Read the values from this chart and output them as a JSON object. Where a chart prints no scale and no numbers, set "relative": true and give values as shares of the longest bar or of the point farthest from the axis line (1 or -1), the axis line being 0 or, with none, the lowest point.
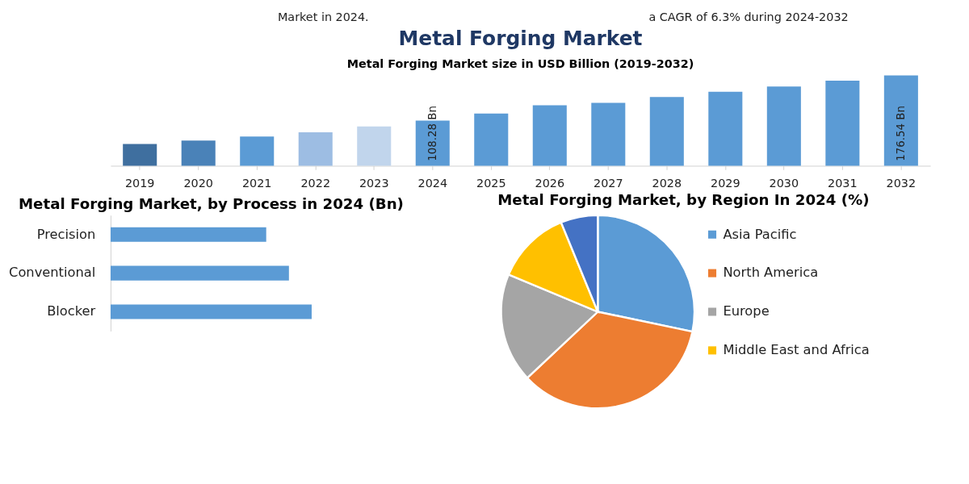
{
  "chart_data": [
    {
      "type": "bar",
      "title": "Metal Forging Market",
      "subtitle": "Metal Forging Market size in USD Billion (2019-2032)",
      "annotations": [
        "Market in 2024.",
        "a CAGR of 6.3% during 2024-2032"
      ],
      "categories": [
        "2019",
        "2020",
        "2021",
        "2022",
        "2023",
        "2024",
        "2025",
        "2026",
        "2027",
        "2028",
        "2029",
        "2030",
        "2031",
        "2032"
      ],
      "values": [
        72.8,
        78.1,
        84.3,
        90.5,
        99.4,
        108.28,
        118.9,
        131.3,
        134.9,
        143.7,
        151.7,
        159.7,
        168.5,
        176.54
      ],
      "colors": [
        "#3f6f9f",
        "#4a82b8",
        "#5b9bd5",
        "#9dbde3",
        "#c1d5ec",
        "#5b9bd5",
        "#5b9bd5",
        "#5b9bd5",
        "#5b9bd5",
        "#5b9bd5",
        "#5b9bd5",
        "#5b9bd5",
        "#5b9bd5",
        "#5b9bd5"
      ],
      "value_labels": [
        null,
        null,
        null,
        null,
        null,
        "108.28 Bn",
        null,
        null,
        null,
        null,
        null,
        null,
        null,
        "176.54 Bn"
      ],
      "ylim": [
        40,
        180
      ],
      "tick_labels": "x",
      "grid": false
    },
    {
      "type": "bar",
      "orientation": "horizontal",
      "relative": true,
      "title": "Metal Forging Market, by Process in 2024 (Bn)",
      "categories": [
        "Precision",
        "Conventional",
        "Blocker"
      ],
      "values": [
        0.774,
        0.887,
        1
      ],
      "color": "#5b9bd5",
      "grid": false
    },
    {
      "type": "pie",
      "title": "Metal Forging Market, by Region In 2024 (%)",
      "categories": [
        "Asia Pacific",
        "North America",
        "Europe",
        "Middle East and Africa",
        null
      ],
      "values": [
        28.3,
        34.7,
        18.3,
        12.5,
        6.2
      ],
      "colors": [
        "#5b9bd5",
        "#ed7d31",
        "#a5a5a5",
        "#ffc000",
        "#4472c4"
      ],
      "legend": "right"
    }
  ]
}
